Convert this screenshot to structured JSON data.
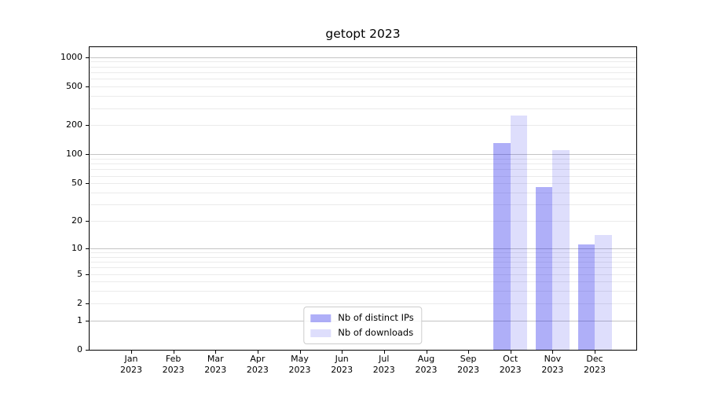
{
  "chart_data": {
    "type": "bar",
    "title": "getopt 2023",
    "categories": [
      "Jan",
      "Feb",
      "Mar",
      "Apr",
      "May",
      "Jun",
      "Jul",
      "Aug",
      "Sep",
      "Oct",
      "Nov",
      "Dec"
    ],
    "year": "2023",
    "series": [
      {
        "name": "Nb of distinct IPs",
        "color": "rgba(20,20,235,0.34)",
        "values": [
          0,
          0,
          0,
          0,
          0,
          0,
          0,
          0,
          0,
          130,
          46,
          11
        ]
      },
      {
        "name": "Nb of downloads",
        "color": "rgba(20,20,235,0.14)",
        "values": [
          0,
          0,
          0,
          0,
          0,
          0,
          0,
          0,
          0,
          250,
          110,
          14
        ]
      }
    ],
    "xlabel": "",
    "ylabel": "",
    "yscale": "log1p",
    "y_ticks": [
      0,
      1,
      2,
      5,
      10,
      20,
      50,
      100,
      200,
      500,
      1000
    ],
    "y_max": 1267,
    "grid": true,
    "legend_position": "lower center",
    "colors": {
      "major_grid": "#c4c4c4",
      "minor_grid": "#ebebeb",
      "spine": "#000000",
      "background": "#ffffff"
    }
  }
}
